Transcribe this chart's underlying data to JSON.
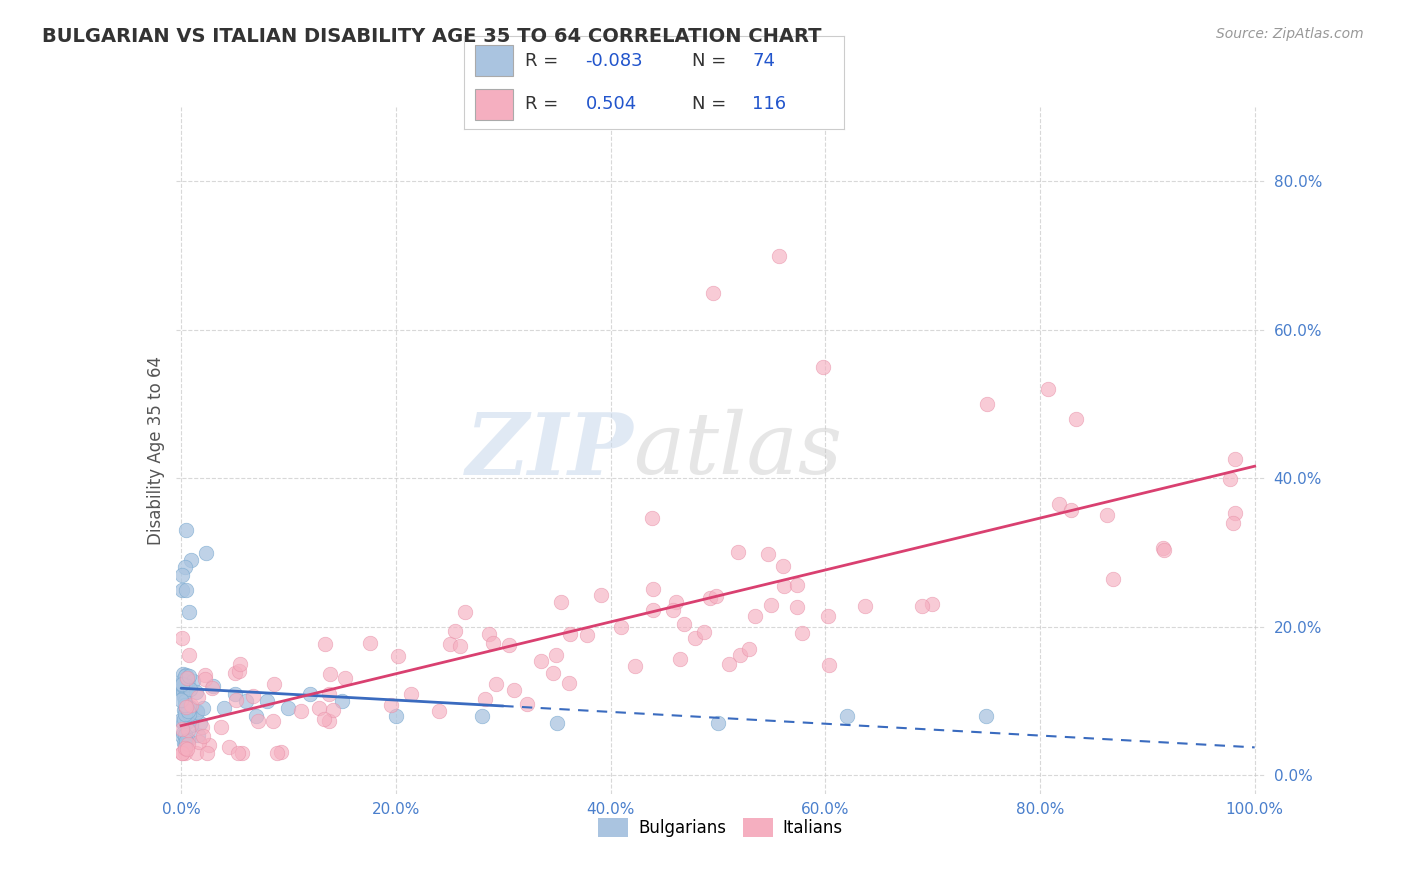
{
  "title": "BULGARIAN VS ITALIAN DISABILITY AGE 35 TO 64 CORRELATION CHART",
  "source_text": "Source: ZipAtlas.com",
  "ylabel": "Disability Age 35 to 64",
  "xlim": [
    -0.005,
    1.01
  ],
  "ylim": [
    -0.025,
    0.9
  ],
  "x_ticks": [
    0.0,
    0.2,
    0.4,
    0.6,
    0.8,
    1.0
  ],
  "x_tick_labels": [
    "0.0%",
    "20.0%",
    "40.0%",
    "60.0%",
    "80.0%",
    "100.0%"
  ],
  "y_ticks": [
    0.0,
    0.2,
    0.4,
    0.6,
    0.8
  ],
  "y_tick_labels": [
    "0.0%",
    "20.0%",
    "40.0%",
    "60.0%",
    "80.0%"
  ],
  "bulgarian_R": -0.083,
  "bulgarian_N": 74,
  "italian_R": 0.504,
  "italian_N": 116,
  "bulgarian_color": "#aac4e0",
  "italian_color": "#f5afc0",
  "bulgarian_line_color": "#3a6bbf",
  "italian_line_color": "#d94070",
  "bulgarian_scatter_edge": "#7aaad0",
  "italian_scatter_edge": "#e890a8",
  "background_color": "#ffffff",
  "grid_color": "#c8c8c8",
  "watermark_zip_color": "#c8d8ec",
  "watermark_atlas_color": "#c8c8c8",
  "title_color": "#333333",
  "source_color": "#999999",
  "tick_color": "#4a7fcc",
  "ylabel_color": "#555555",
  "legend_R_label_color": "#333333",
  "legend_value_color": "#2255cc"
}
